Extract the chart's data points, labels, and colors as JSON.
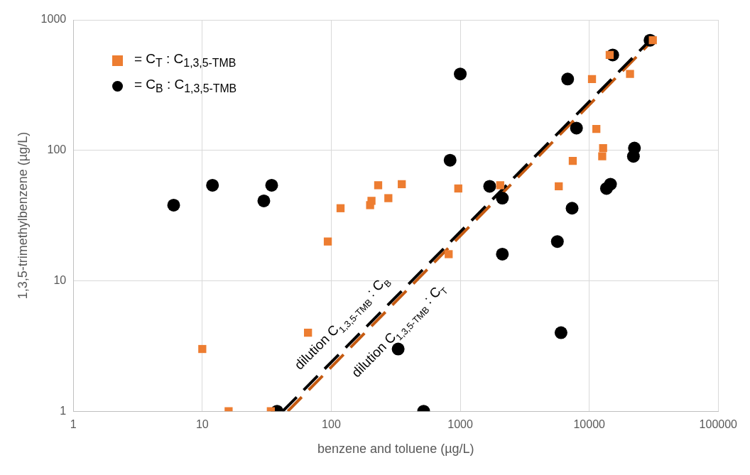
{
  "chart_data": {
    "type": "scatter",
    "xlabel": "benzene and toluene (µg/L)",
    "ylabel": "1,3,5-trimethylbenzene (µg/L)",
    "log": "xy",
    "xlim": [
      1,
      100000
    ],
    "ylim": [
      1,
      1000
    ],
    "xticks": [
      1,
      10,
      100,
      1000,
      10000,
      100000
    ],
    "yticks": [
      1,
      10,
      100,
      1000
    ],
    "grid": true,
    "legend": "top left",
    "series": [
      {
        "name": "= C$_{T}$ : C$_{1,3,5-TMB}$",
        "marker": "square",
        "color": "#ed7d31",
        "x": [
          10,
          16,
          34,
          66,
          94,
          118,
          200,
          205,
          231,
          277,
          352,
          965,
          813,
          2040,
          5800,
          7450,
          10500,
          11350,
          12800,
          12600,
          14400,
          20700,
          31100
        ],
        "values": [
          3,
          1,
          1,
          4,
          20,
          36,
          38,
          41,
          54,
          43,
          55,
          51,
          16,
          54,
          53,
          83,
          352,
          146,
          104,
          90,
          538,
          385,
          698
        ]
      },
      {
        "name": "= C$_{B}$ : C$_{1,3,5-TMB}$",
        "marker": "circle",
        "color": "#000000",
        "x": [
          6,
          12,
          30,
          34.5,
          38,
          330,
          520,
          834,
          1000,
          1690,
          2120,
          2120,
          6800,
          7960,
          7360,
          5660,
          6040,
          13600,
          14600,
          22400,
          22000,
          15200,
          29600
        ],
        "values": [
          38,
          54,
          41,
          54,
          1,
          3,
          1,
          84,
          385,
          53,
          43,
          16,
          352,
          148,
          36,
          20,
          4,
          51,
          55,
          104,
          90,
          538,
          698
        ]
      },
      {
        "type": "line",
        "marker": "none",
        "line_style": "dashed",
        "color": "#000000",
        "x": [
          42,
          29600
        ],
        "values": [
          1,
          698
        ]
      },
      {
        "type": "line",
        "marker": "none",
        "line_style": "dashed",
        "color": "#c55a11",
        "x": [
          46,
          31100
        ],
        "values": [
          1,
          698
        ]
      }
    ],
    "annotations": [
      "dilution C$_{1,3,5-TMB}$ : C$_{B}$",
      "dilution C$_{1,3,5-TMB}$ : C$_{T}$"
    ]
  }
}
